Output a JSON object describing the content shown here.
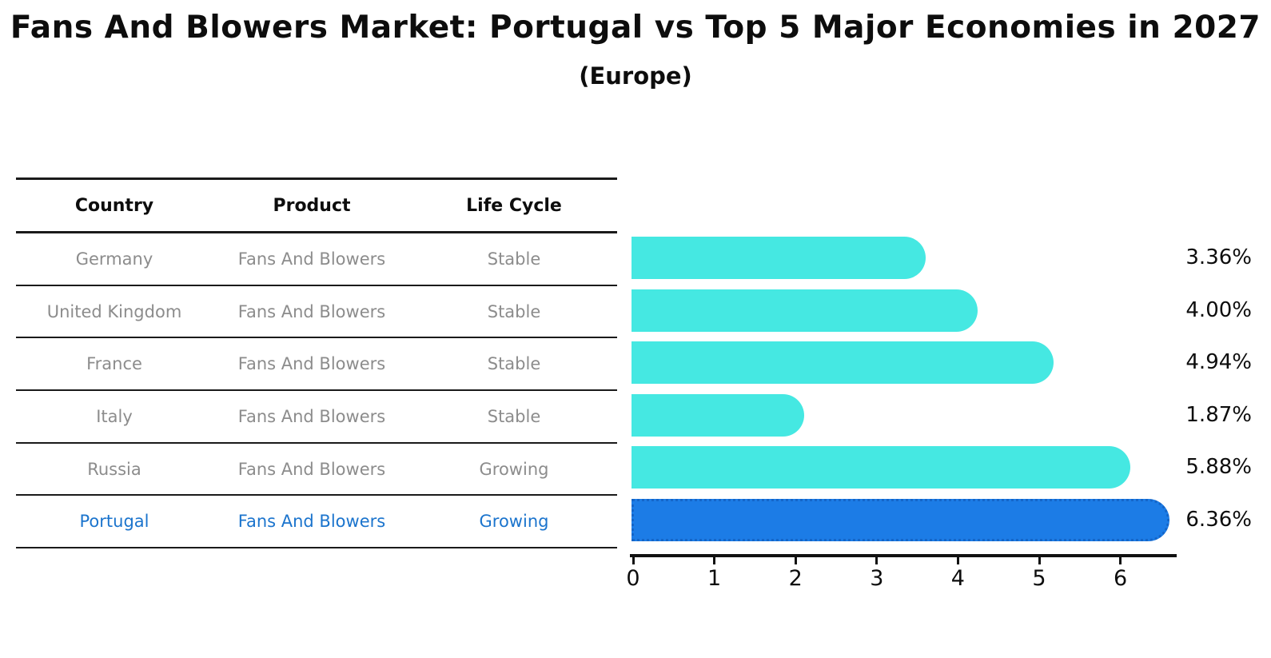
{
  "header": {
    "title": "Fans And Blowers Market: Portugal vs Top 5 Major Economies in 2027",
    "subtitle": "(Europe)"
  },
  "table": {
    "columns": [
      "Country",
      "Product",
      "Life Cycle"
    ],
    "rows": [
      {
        "country": "Germany",
        "product": "Fans And Blowers",
        "life_cycle": "Stable",
        "highlighted": false
      },
      {
        "country": "United Kingdom",
        "product": "Fans And Blowers",
        "life_cycle": "Stable",
        "highlighted": false
      },
      {
        "country": "France",
        "product": "Fans And Blowers",
        "life_cycle": "Stable",
        "highlighted": false
      },
      {
        "country": "Italy",
        "product": "Fans And Blowers",
        "life_cycle": "Stable",
        "highlighted": false
      },
      {
        "country": "Russia",
        "product": "Fans And Blowers",
        "life_cycle": "Growing",
        "highlighted": false
      },
      {
        "country": "Portugal",
        "product": "Fans And Blowers",
        "life_cycle": "Growing",
        "highlighted": true
      }
    ]
  },
  "chart_data": {
    "type": "bar",
    "orientation": "horizontal",
    "title": "Fans And Blowers Market: Portugal vs Top 5 Major Economies in 2027 (Europe)",
    "categories": [
      "Germany",
      "United Kingdom",
      "France",
      "Italy",
      "Russia",
      "Portugal"
    ],
    "values": [
      3.36,
      4.0,
      4.94,
      1.87,
      5.88,
      6.36
    ],
    "value_labels": [
      "3.36%",
      "4.00%",
      "4.94%",
      "1.87%",
      "5.88%",
      "6.36%"
    ],
    "highlight_index": 5,
    "xticks": [
      "0",
      "1",
      "2",
      "3",
      "4",
      "5",
      "6"
    ],
    "xlim": [
      0,
      6.67
    ],
    "grid": false,
    "legend": false,
    "bar_color": "#45e8e2",
    "highlight_bar_color": "#1c7ce6",
    "highlight_border_color": "#1465c8",
    "muted_text_color": "#8c8c8c",
    "highlight_text_color": "#1b74cd",
    "axis_color": "#111111"
  }
}
